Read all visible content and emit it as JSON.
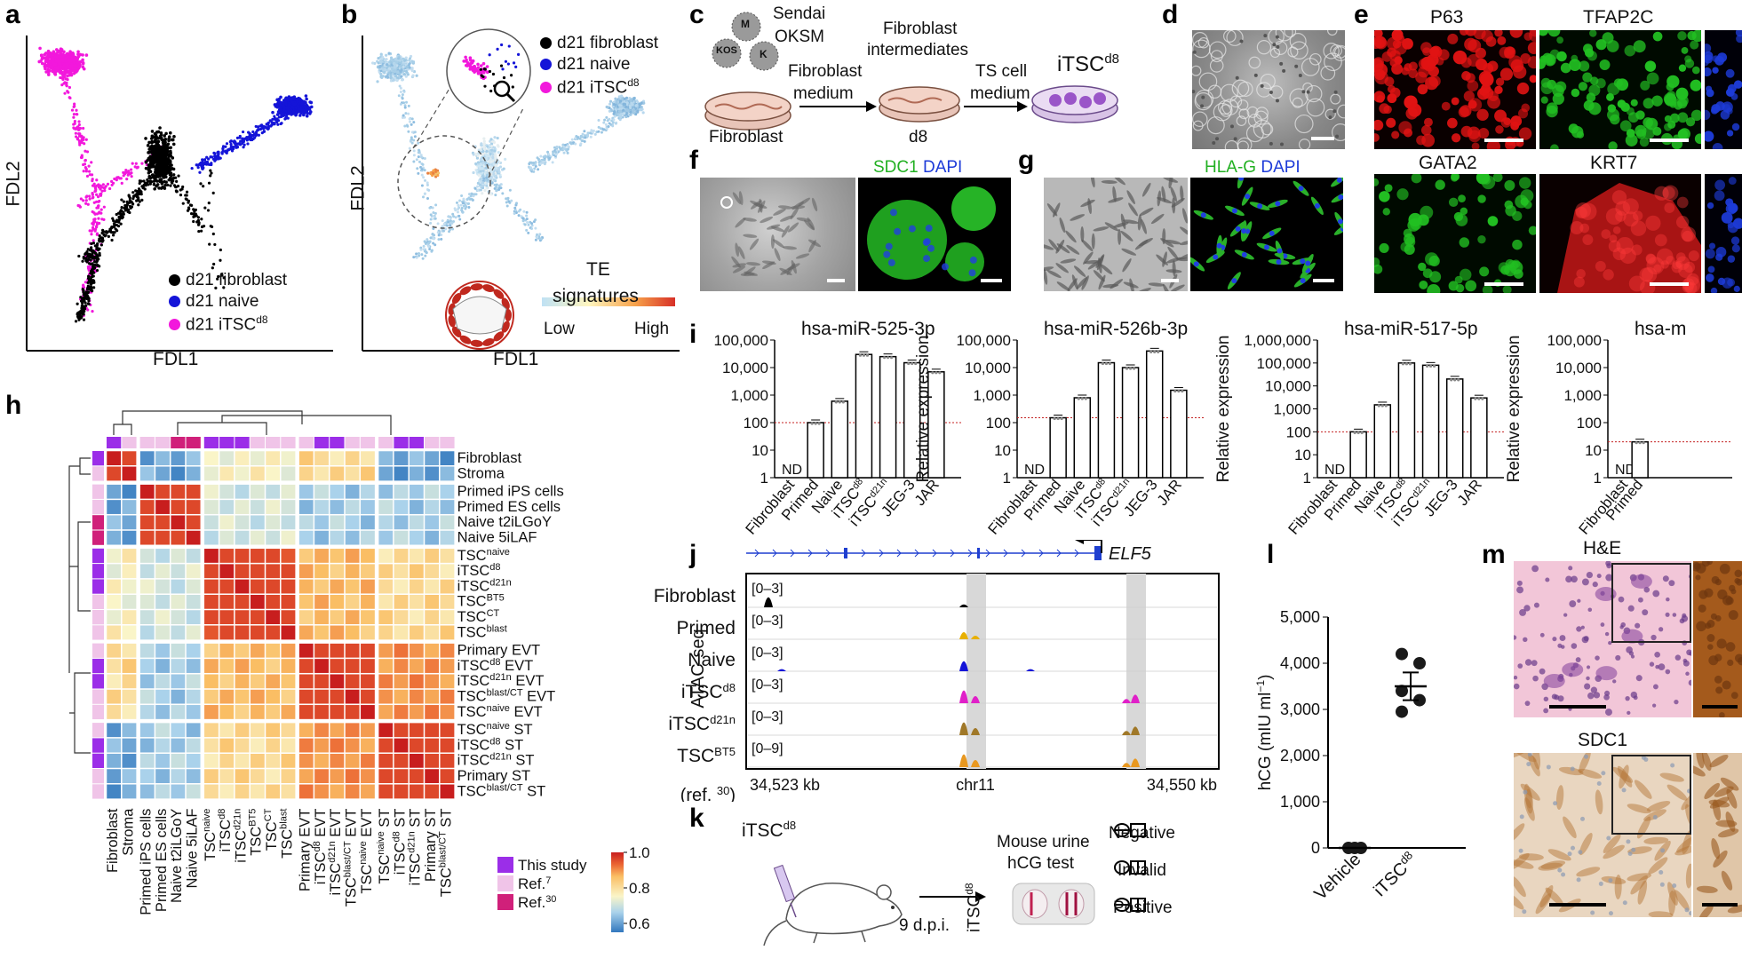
{
  "colors": {
    "fibroblast": "#000000",
    "naive": "#1414d8",
    "itsc": "#f218dc",
    "red_stain": "#e11313",
    "green_stain": "#22c022",
    "blue_stain": "#1d3bd8"
  },
  "panel_letters": [
    "a",
    "b",
    "c",
    "d",
    "e",
    "f",
    "g",
    "h",
    "i",
    "j",
    "k",
    "l",
    "m"
  ],
  "panel_a": {
    "xlabel": "FDL1",
    "ylabel": "FDL2",
    "legend": [
      {
        "label": "d21 fibroblast",
        "color": "#000000"
      },
      {
        "label": "d21 naive",
        "color": "#1414d8"
      },
      {
        "label": "d21 iTSC",
        "sup": "d8",
        "color": "#f218dc"
      }
    ]
  },
  "panel_b": {
    "xlabel": "FDL1",
    "ylabel": "FDL2",
    "legend": [
      {
        "label": "d21 fibroblast",
        "color": "#000000"
      },
      {
        "label": "d21 naive",
        "color": "#1414d8"
      },
      {
        "label": "d21 iTSC",
        "sup": "d8",
        "color": "#f218dc"
      }
    ],
    "colorbar_title_1": "TE",
    "colorbar_title_2": "signatures",
    "colorbar_low": "Low",
    "colorbar_high": "High"
  },
  "panel_c": {
    "virus_1": "Sendai",
    "virus_2": "OKSM",
    "factors": [
      "M",
      "KOS",
      "K"
    ],
    "step1": "Fibroblast",
    "step1b": "medium",
    "intermediate_1": "Fibroblast",
    "intermediate_2": "intermediates",
    "step2": "TS cell",
    "step2b": "medium",
    "start": "Fibroblast",
    "mid": "d8",
    "end": "iTSC",
    "end_sup": "d8"
  },
  "panel_e": {
    "top_labels": [
      "P63",
      "TFAP2C"
    ],
    "bottom_labels": [
      "GATA2",
      "KRT7"
    ]
  },
  "panel_f": {
    "stain_a": "SDC1",
    "stain_b": "DAPI"
  },
  "panel_g": {
    "stain_a": "HLA-G",
    "stain_b": "DAPI"
  },
  "panel_h": {
    "row_labels": [
      {
        "t": "Fibroblast",
        "s": ""
      },
      {
        "t": "Stroma",
        "s": ""
      },
      {
        "t": "Primed iPS cells",
        "s": ""
      },
      {
        "t": "Primed ES cells",
        "s": ""
      },
      {
        "t": "Naive t2iLGoY",
        "s": ""
      },
      {
        "t": "Naive 5iLAF",
        "s": ""
      },
      {
        "t": "TSC",
        "s": "naive"
      },
      {
        "t": "iTSC",
        "s": "d8"
      },
      {
        "t": "iTSC",
        "s": "d21n"
      },
      {
        "t": "TSC",
        "s": "BT5"
      },
      {
        "t": "TSC",
        "s": "CT"
      },
      {
        "t": "TSC",
        "s": "blast"
      },
      {
        "t": "Primary EVT",
        "s": ""
      },
      {
        "t": "iTSC",
        "s": "d8",
        "u": " EVT"
      },
      {
        "t": "iTSC",
        "s": "d21n",
        "u": " EVT"
      },
      {
        "t": "TSC",
        "s": "blast/CT",
        "u": " EVT"
      },
      {
        "t": "TSC",
        "s": "naive",
        "u": " EVT"
      },
      {
        "t": "TSC",
        "s": "naive",
        "u": " ST"
      },
      {
        "t": "iTSC",
        "s": "d8",
        "u": " ST"
      },
      {
        "t": "iTSC",
        "s": "d21n",
        "u": " ST"
      },
      {
        "t": "Primary ST",
        "s": ""
      },
      {
        "t": "TSC",
        "s": "blast/CT",
        "u": " ST"
      }
    ],
    "legend": [
      {
        "label": "This study",
        "color": "#9b2ee8"
      },
      {
        "label": "Ref.",
        "sup": "7",
        "color": "#f0c4e8"
      },
      {
        "label": "Ref.",
        "sup": "30",
        "color": "#d0207a"
      }
    ],
    "colorbar_ticks": [
      "1.0",
      "0.8",
      "0.6"
    ],
    "colorbar_range": [
      0.55,
      1.0
    ]
  },
  "panel_i": {
    "ylabel": "Relative expression",
    "categories": [
      "Fibroblast",
      "Primed",
      "Naive",
      "iTSC",
      "iTSC",
      "JEG-3",
      "JAR"
    ],
    "category_sups": [
      "",
      "",
      "",
      "d8",
      "d21n",
      "",
      ""
    ],
    "nd_label": "ND",
    "charts": [
      {
        "title": "hsa-miR-525-3p",
        "yticks": [
          "100,000",
          "10,000",
          "1,000",
          "100",
          "10",
          "1"
        ],
        "log_min": 0,
        "log_max": 5,
        "values": [
          null,
          100,
          600,
          30000,
          25000,
          15000,
          7000
        ],
        "threshold": 100
      },
      {
        "title": "hsa-miR-526b-3p",
        "yticks": [
          "100,000",
          "10,000",
          "1,000",
          "100",
          "10",
          "1"
        ],
        "log_min": 0,
        "log_max": 5,
        "values": [
          null,
          150,
          800,
          15000,
          10000,
          40000,
          1500
        ],
        "threshold": 150
      },
      {
        "title": "hsa-miR-517-5p",
        "yticks": [
          "1,000,000",
          "100,000",
          "10,000",
          "1,000",
          "100",
          "10",
          "1"
        ],
        "log_min": 0,
        "log_max": 6,
        "values": [
          null,
          100,
          1500,
          100000,
          80000,
          20000,
          3000
        ],
        "threshold": 100
      },
      {
        "title": "hsa-m",
        "yticks": [
          "100,000",
          "10,000",
          "1,000",
          "100",
          "10",
          "1"
        ],
        "log_min": 0,
        "log_max": 5,
        "values": [
          null,
          20
        ],
        "threshold": 20
      }
    ]
  },
  "panel_j": {
    "gene": "ELF5",
    "assay": "ATAC-seq",
    "tracks": [
      {
        "name": "Fibroblast",
        "sup": "",
        "range": "[0–3]",
        "color": "#000000"
      },
      {
        "name": "Primed",
        "sup": "",
        "range": "[0–3]",
        "color": "#e8b000"
      },
      {
        "name": "Naive",
        "sup": "",
        "range": "[0–3]",
        "color": "#1414d8"
      },
      {
        "name": "iTSC",
        "sup": "d8",
        "range": "[0–3]",
        "color": "#e020c8"
      },
      {
        "name": "iTSC",
        "sup": "d21n",
        "range": "[0–3]",
        "color": "#a07828"
      },
      {
        "name": "TSC",
        "sup": "BT5",
        "range": "[0–9]",
        "color": "#e89820"
      }
    ],
    "ref_note": "(ref. ",
    "ref_sup": "30",
    "ref_close": ")",
    "x_left": "34,523 kb",
    "x_mid": "chr11",
    "x_right": "34,550 kb"
  },
  "panel_k": {
    "cell": "iTSC",
    "cell_sup": "d8",
    "time": "9 d.p.i.",
    "test_title_1": "Mouse urine",
    "test_title_2": "hCG test",
    "side_label": "iTSC",
    "side_sup": "d8",
    "legend": [
      "Negative",
      "Invalid",
      "Positive"
    ]
  },
  "panel_l": {
    "ylabel": "hCG (mIU ml",
    "ylabel_sup": "−1",
    "ylabel_close": ")",
    "yticks": [
      "5,000",
      "4,000",
      "3,000",
      "2,000",
      "1,000",
      "0"
    ],
    "ylim": [
      0,
      5000
    ],
    "categories": [
      "Vehicle",
      "iTSC"
    ],
    "category_sups": [
      "",
      "d8"
    ],
    "points": {
      "Vehicle": [
        0,
        0,
        0
      ],
      "iTSC": [
        4200,
        4000,
        3400,
        3200,
        2950
      ]
    },
    "mean": {
      "Vehicle": 0,
      "iTSC": 3500
    },
    "sem": {
      "Vehicle": 0,
      "iTSC": 300
    }
  },
  "panel_m": {
    "top": "H&E",
    "bottom": "SDC1"
  }
}
